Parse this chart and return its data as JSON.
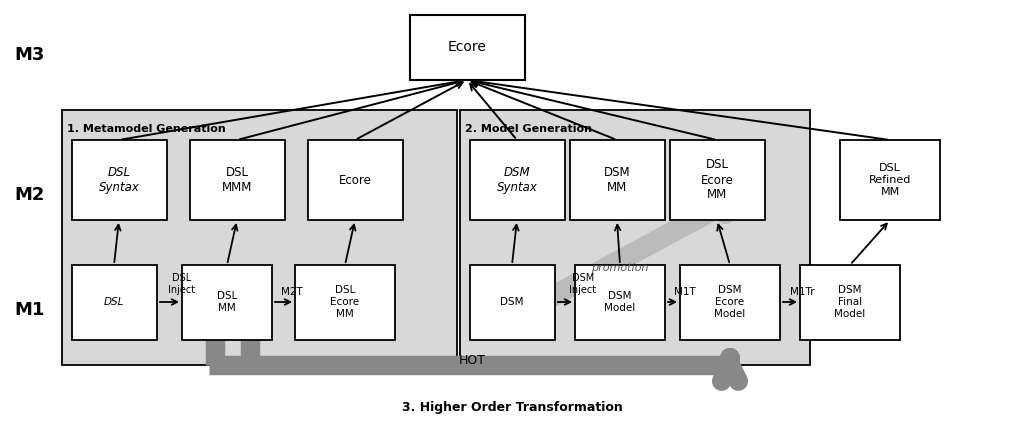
{
  "fig_width": 10.24,
  "fig_height": 4.21,
  "bg_color": "#ffffff",
  "gray_section": "#d8d8d8",
  "box_white": "#ffffff",
  "box_edge": "#222222",
  "hot_color": "#888888",
  "promo_color": "#bbbbbb",
  "label_M3": "M3",
  "label_M2": "M2",
  "label_M1": "M1",
  "label_meta": "1. Metamodel Generation",
  "label_model": "2. Model Generation",
  "label_bottom": "3. Higher Order Transformation",
  "ecore_top": "Ecore",
  "m2_meta_labels": [
    [
      "DSL\nSyntax",
      true
    ],
    [
      "DSL\nMMM",
      false
    ],
    [
      "Ecore",
      false
    ]
  ],
  "m2_model_labels": [
    [
      "DSM\nSyntax",
      true
    ],
    [
      "DSM\nMM",
      false
    ],
    [
      "DSL\nEcore\nMM",
      false
    ]
  ],
  "m2_refined_label": [
    "DSL\nRefined\nMM",
    false
  ],
  "m1_labels": [
    [
      "DSL",
      true
    ],
    [
      "DSL\nMM",
      false
    ],
    [
      "DSL\nEcore\nMM",
      false
    ],
    [
      "DSM",
      false
    ],
    [
      "DSM\nModel",
      false
    ],
    [
      "DSM\nEcore\nModel",
      false
    ],
    [
      "DSM\nFinal\nModel",
      false
    ]
  ],
  "arrow_labels": [
    "DSL\nInject",
    "M2T",
    "DSM\nInject",
    "M1T",
    "M1Tr"
  ],
  "hot_label": "HOT",
  "promotion_label": "promotion"
}
